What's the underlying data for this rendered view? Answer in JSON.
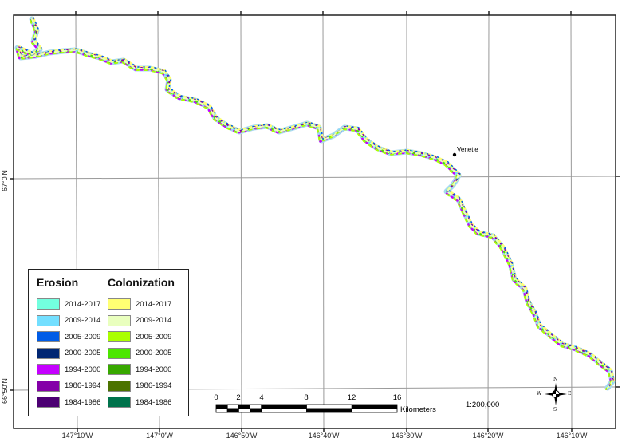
{
  "map": {
    "longitude_labels": [
      "147°10'W",
      "147°0'W",
      "146°50'W",
      "146°40'W",
      "146°30'W",
      "146°20'W",
      "146°10'W"
    ],
    "latitude_labels": [
      "67°0'N",
      "66°50'N"
    ],
    "place": {
      "name": "Venetie"
    },
    "scale_text": "1:200,000",
    "scale_bar": {
      "labels": [
        "0",
        "2",
        "4",
        "8",
        "12",
        "16"
      ],
      "unit": "Kilometers"
    },
    "north_arrow": {
      "n": "N",
      "s": "S",
      "e": "E",
      "w": "W"
    }
  },
  "legend": {
    "erosion_title": "Erosion",
    "colonization_title": "Colonization",
    "erosion": [
      {
        "label": "2014-2017",
        "color": "#73ffdf"
      },
      {
        "label": "2009-2014",
        "color": "#73dfff"
      },
      {
        "label": "2005-2009",
        "color": "#005ce6"
      },
      {
        "label": "2000-2005",
        "color": "#002673"
      },
      {
        "label": "1994-2000",
        "color": "#c500ff"
      },
      {
        "label": "1986-1994",
        "color": "#8400a8"
      },
      {
        "label": "1984-1986",
        "color": "#4c0073"
      }
    ],
    "colonization": [
      {
        "label": "2014-2017",
        "color": "#ffff73"
      },
      {
        "label": "2009-2014",
        "color": "#e9ffbe"
      },
      {
        "label": "2005-2009",
        "color": "#aaff00"
      },
      {
        "label": "2000-2005",
        "color": "#4ce600"
      },
      {
        "label": "1994-2000",
        "color": "#38a800"
      },
      {
        "label": "1986-1994",
        "color": "#4c7300"
      },
      {
        "label": "1984-1986",
        "color": "#00734c"
      }
    ]
  }
}
